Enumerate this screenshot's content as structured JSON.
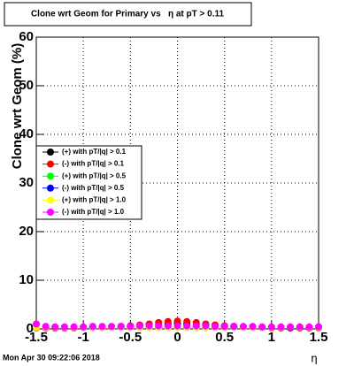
{
  "chart_data": {
    "type": "scatter",
    "title": "Clone wrt Geom for Primary vs   η at pT > 0.11",
    "y_label": "Clone wrt Geom (%)",
    "x_label": "η",
    "timestamp": "Mon Apr 30 09:22:06 2018",
    "x": [
      -1.5,
      -1.4,
      -1.3,
      -1.2,
      -1.1,
      -1.0,
      -0.9,
      -0.8,
      -0.7,
      -0.6,
      -0.5,
      -0.4,
      -0.3,
      -0.2,
      -0.1,
      0,
      0.1,
      0.2,
      0.3,
      0.4,
      0.5,
      0.6,
      0.7,
      0.8,
      0.9,
      1.0,
      1.1,
      1.2,
      1.3,
      1.4,
      1.5
    ],
    "series": [
      {
        "name": "(+) with pT/|q| > 0.1",
        "color": "#000000",
        "values": [
          0.3,
          0.2,
          0.2,
          0.2,
          0.3,
          0.3,
          0.3,
          0.3,
          0.4,
          0.5,
          0.6,
          0.7,
          0.8,
          0.9,
          1.0,
          1.1,
          1.0,
          0.9,
          0.8,
          0.7,
          0.6,
          0.5,
          0.4,
          0.3,
          0.3,
          0.3,
          0.2,
          0.2,
          0.2,
          0.2,
          0.3
        ]
      },
      {
        "name": "(-) with pT/|q| > 0.1",
        "color": "#ff0000",
        "values": [
          0.2,
          0.2,
          0.2,
          0.2,
          0.2,
          0.3,
          0.3,
          0.3,
          0.4,
          0.5,
          0.6,
          0.8,
          1.0,
          1.3,
          1.5,
          1.6,
          1.5,
          1.3,
          1.0,
          0.8,
          0.6,
          0.5,
          0.4,
          0.3,
          0.3,
          0.2,
          0.2,
          0.2,
          0.2,
          0.2,
          0.2
        ]
      },
      {
        "name": "(+) with pT/|q| > 0.5",
        "color": "#00ff00",
        "values": [
          0.3,
          0.3,
          0.3,
          0.3,
          0.3,
          0.3,
          0.3,
          0.3,
          0.3,
          0.3,
          0.3,
          0.3,
          0.3,
          0.3,
          0.3,
          0.3,
          0.3,
          0.3,
          0.3,
          0.3,
          0.3,
          0.3,
          0.3,
          0.3,
          0.3,
          0.3,
          0.3,
          0.3,
          0.3,
          0.3,
          0.3
        ]
      },
      {
        "name": "(-) with pT/|q| > 0.5",
        "color": "#0000ff",
        "values": [
          0.3,
          0.3,
          0.3,
          0.3,
          0.3,
          0.3,
          0.3,
          0.3,
          0.3,
          0.3,
          0.3,
          0.3,
          0.3,
          0.3,
          0.3,
          0.3,
          0.3,
          0.3,
          0.3,
          0.3,
          0.3,
          0.3,
          0.3,
          0.3,
          0.3,
          0.3,
          0.3,
          0.3,
          0.3,
          0.3,
          0.4
        ]
      },
      {
        "name": "(+) with pT/|q| > 1.0",
        "color": "#ffff00",
        "values": [
          0.3,
          0.3,
          0.3,
          0.3,
          0.3,
          0.3,
          0.3,
          0.3,
          0.3,
          0.3,
          0.3,
          0.3,
          0.3,
          0.3,
          0.3,
          0.3,
          0.3,
          0.3,
          0.3,
          0.3,
          0.3,
          0.3,
          0.3,
          0.3,
          0.3,
          0.3,
          0.3,
          0.4,
          0.3,
          0.3,
          0.3
        ]
      },
      {
        "name": "(-) with pT/|q| > 1.0",
        "color": "#ff00ff",
        "values": [
          1.0,
          0.5,
          0.4,
          0.4,
          0.4,
          0.4,
          0.5,
          0.5,
          0.5,
          0.5,
          0.5,
          0.6,
          0.6,
          0.6,
          0.6,
          0.6,
          0.6,
          0.6,
          0.6,
          0.5,
          0.5,
          0.5,
          0.5,
          0.5,
          0.4,
          0.4,
          0.4,
          0.4,
          0.4,
          0.4,
          0.4
        ]
      }
    ],
    "xlim": [
      -1.5,
      1.5
    ],
    "ylim": [
      0,
      60
    ],
    "xticks": [
      -1.5,
      -1,
      -0.5,
      0,
      0.5,
      1,
      1.5
    ],
    "yticks": [
      0,
      10,
      20,
      30,
      40,
      50,
      60
    ],
    "grid": true
  }
}
